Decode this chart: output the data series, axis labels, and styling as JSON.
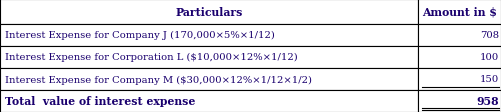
{
  "header": [
    "Particulars",
    "Amount in $"
  ],
  "rows": [
    [
      "Interest Expense for Company J (170,000×5%×1/12)",
      "708"
    ],
    [
      "Interest Expense for Corporation L ($10,000×12%×1/12)",
      "100"
    ],
    [
      "Interest Expense for Company M ($30,000×12%×1/12×1/2)",
      "150"
    ]
  ],
  "total_row": [
    "Total  value of interest expense",
    "958"
  ],
  "col_split": 0.835,
  "bg_color": "#ffffff",
  "border_color": "#000000",
  "text_color": "#1a006e",
  "header_font_size": 7.8,
  "row_font_size": 7.2,
  "total_font_size": 7.8,
  "fig_width": 5.01,
  "fig_height": 1.13,
  "dpi": 100
}
